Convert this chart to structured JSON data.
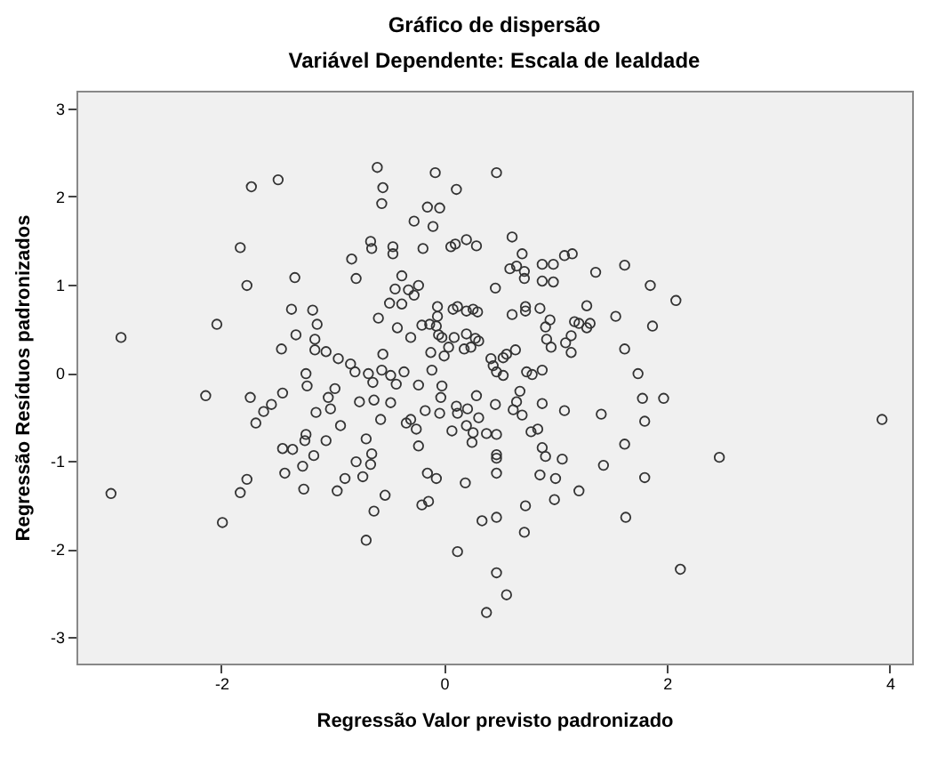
{
  "chart_data": {
    "type": "scatter",
    "title": "Gráfico de dispersão",
    "subtitle": "Variável Dependente: Escala de lealdade",
    "xlabel": "Regressão Valor previsto padronizado",
    "ylabel": "Regressão Resíduos padronizados",
    "xlim": [
      -3.3,
      4.2
    ],
    "ylim": [
      -3.3,
      3.2
    ],
    "xticks": [
      -2,
      0,
      2,
      4
    ],
    "yticks": [
      -3,
      -2,
      -1,
      0,
      1,
      2,
      3
    ],
    "marker": "circle",
    "series": [
      {
        "color": "#333333",
        "x": [
          -1.73,
          -1.49,
          -1.83,
          -1.77,
          -1.34,
          -0.83,
          -0.79,
          -2.04,
          -2.9,
          -1.37,
          -1.18,
          -1.14,
          -1.33,
          -1.46,
          -1.16,
          -1.16,
          -1.06,
          -0.95,
          -0.84,
          -0.8,
          -1.24,
          -0.6,
          -0.08,
          0.47,
          -0.55,
          0.11,
          -0.56,
          -0.15,
          -0.04,
          -0.27,
          -0.1,
          -0.66,
          -0.65,
          -0.46,
          -0.46,
          -0.19,
          0.06,
          0.1,
          0.2,
          0.29,
          0.61,
          0.7,
          0.59,
          0.65,
          0.72,
          0.72,
          0.88,
          0.98,
          1.08,
          1.15,
          1.62,
          1.36,
          0.88,
          0.98,
          0.46,
          -0.38,
          -0.44,
          -0.32,
          -0.23,
          -0.27,
          -0.49,
          -0.38,
          -0.59,
          -0.42,
          -0.3,
          -0.55,
          -0.2,
          -0.13,
          -0.06,
          -0.06,
          -0.07,
          -0.05,
          -0.02,
          -0.12,
          0.0,
          0.04,
          0.09,
          0.08,
          0.12,
          0.2,
          0.26,
          0.3,
          0.2,
          0.28,
          0.31,
          0.18,
          0.24,
          0.61,
          0.73,
          0.73,
          0.86,
          0.95,
          0.91,
          0.92,
          0.96,
          1.09,
          1.14,
          1.14,
          1.17,
          1.21,
          1.28,
          1.31,
          1.28,
          1.54,
          1.62,
          1.74,
          0.42,
          0.44,
          0.53,
          0.56,
          0.64,
          0.47,
          0.53,
          0.74,
          0.79,
          0.88,
          -0.68,
          -0.56,
          -0.48,
          -0.36,
          -0.11,
          1.85,
          2.08,
          1.87,
          -2.14,
          -1.74,
          -1.55,
          -1.62,
          -1.69,
          -1.45,
          -1.23,
          -0.98,
          -1.04,
          -1.02,
          -1.15,
          -0.93,
          -1.06,
          -1.24,
          -1.25,
          -1.45,
          -1.36,
          -1.17,
          -1.27,
          -1.43,
          -1.26,
          -0.96,
          -0.89,
          -0.79,
          -1.77,
          -1.83,
          -1.99,
          -2.99,
          -0.64,
          -0.43,
          -0.23,
          -0.02,
          -0.03,
          -0.76,
          -0.63,
          -0.48,
          -0.57,
          -0.34,
          -0.3,
          -0.25,
          -0.17,
          -0.04,
          0.11,
          0.12,
          0.21,
          0.29,
          0.31,
          0.2,
          0.26,
          0.25,
          0.07,
          0.38,
          0.46,
          0.47,
          0.47,
          0.47,
          0.47,
          0.68,
          0.65,
          0.62,
          0.7,
          0.88,
          1.08,
          0.78,
          0.84,
          0.88,
          0.91,
          1.06,
          0.86,
          1.0,
          1.21,
          0.99,
          0.73,
          0.72,
          1.41,
          1.62,
          1.43,
          1.63,
          -0.7,
          -0.65,
          -0.66,
          -0.73,
          -0.23,
          -0.15,
          -0.07,
          0.19,
          -0.53,
          -0.63,
          -0.2,
          -0.14,
          -0.7,
          0.34,
          0.47,
          0.12,
          0.47,
          0.56,
          0.38,
          1.78,
          1.97,
          1.8,
          2.47,
          1.8,
          2.12,
          3.93
        ],
        "values": [
          2.11,
          2.19,
          1.42,
          0.99,
          1.08,
          1.29,
          1.07,
          0.55,
          0.4,
          0.72,
          0.71,
          0.55,
          0.43,
          0.27,
          0.38,
          0.26,
          0.24,
          0.16,
          0.1,
          0.01,
          -0.01,
          2.33,
          2.27,
          2.27,
          2.1,
          2.08,
          1.92,
          1.88,
          1.87,
          1.72,
          1.66,
          1.49,
          1.41,
          1.43,
          1.35,
          1.41,
          1.43,
          1.46,
          1.51,
          1.44,
          1.54,
          1.35,
          1.18,
          1.21,
          1.15,
          1.07,
          1.23,
          1.23,
          1.33,
          1.35,
          1.22,
          1.14,
          1.04,
          1.03,
          0.96,
          1.1,
          0.95,
          0.94,
          0.99,
          0.88,
          0.79,
          0.78,
          0.62,
          0.51,
          0.4,
          0.21,
          0.54,
          0.55,
          0.75,
          0.64,
          0.53,
          0.43,
          0.4,
          0.23,
          0.19,
          0.29,
          0.4,
          0.72,
          0.75,
          0.7,
          0.72,
          0.69,
          0.44,
          0.39,
          0.36,
          0.27,
          0.29,
          0.66,
          0.75,
          0.7,
          0.73,
          0.6,
          0.52,
          0.38,
          0.29,
          0.34,
          0.42,
          0.23,
          0.58,
          0.56,
          0.51,
          0.56,
          0.76,
          0.64,
          0.27,
          -0.01,
          0.16,
          0.08,
          0.17,
          0.21,
          0.26,
          0.01,
          -0.03,
          0.01,
          -0.02,
          0.03,
          -0.01,
          0.03,
          -0.03,
          0.01,
          0.03,
          0.99,
          0.82,
          0.53,
          -0.26,
          -0.28,
          -0.36,
          -0.44,
          -0.57,
          -0.23,
          -0.15,
          -0.18,
          -0.28,
          -0.41,
          -0.45,
          -0.6,
          -0.77,
          -0.7,
          -0.77,
          -0.86,
          -0.87,
          -0.94,
          -1.06,
          -1.14,
          -1.32,
          -1.34,
          -1.2,
          -1.01,
          -1.21,
          -1.36,
          -1.7,
          -1.37,
          -0.11,
          -0.13,
          -0.14,
          -0.15,
          -0.28,
          -0.33,
          -0.31,
          -0.34,
          -0.53,
          -0.57,
          -0.53,
          -0.64,
          -0.43,
          -0.46,
          -0.38,
          -0.46,
          -0.41,
          -0.26,
          -0.51,
          -0.6,
          -0.68,
          -0.79,
          -0.66,
          -0.69,
          -0.36,
          -0.7,
          -0.93,
          -0.97,
          -1.14,
          -0.21,
          -0.33,
          -0.42,
          -0.48,
          -0.35,
          -0.43,
          -0.67,
          -0.64,
          -0.85,
          -0.95,
          -0.98,
          -1.16,
          -1.2,
          -1.34,
          -1.44,
          -1.51,
          -1.81,
          -0.47,
          -0.81,
          -1.05,
          -1.64,
          -0.75,
          -0.92,
          -1.04,
          -1.18,
          -0.83,
          -1.14,
          -1.2,
          -1.25,
          -1.39,
          -1.57,
          -1.5,
          -1.46,
          -1.9,
          -1.68,
          -1.64,
          -2.03,
          -2.27,
          -2.52,
          -2.72,
          -0.29,
          -0.29,
          -0.55,
          -0.96,
          -1.19,
          -2.23,
          -0.53
        ]
      }
    ]
  }
}
